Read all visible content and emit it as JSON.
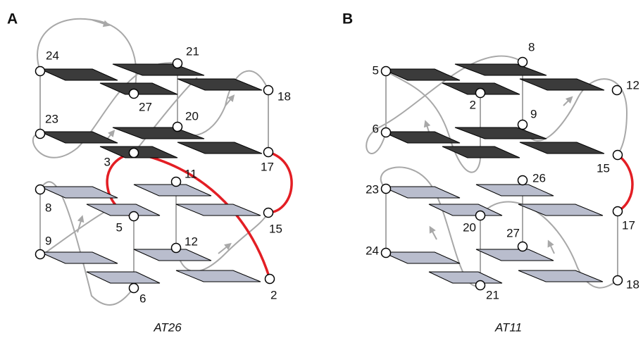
{
  "panels": [
    {
      "label": "A",
      "caption": "AT26",
      "nodes": [
        "24",
        "21",
        "27",
        "18",
        "23",
        "20",
        "3",
        "17",
        "11",
        "8",
        "5",
        "15",
        "9",
        "12",
        "6",
        "2"
      ]
    },
    {
      "label": "B",
      "caption": "AT11",
      "nodes": [
        "5",
        "8",
        "2",
        "12",
        "6",
        "9",
        "15",
        "26",
        "23",
        "20",
        "17",
        "27",
        "24",
        "21",
        "18"
      ]
    }
  ]
}
